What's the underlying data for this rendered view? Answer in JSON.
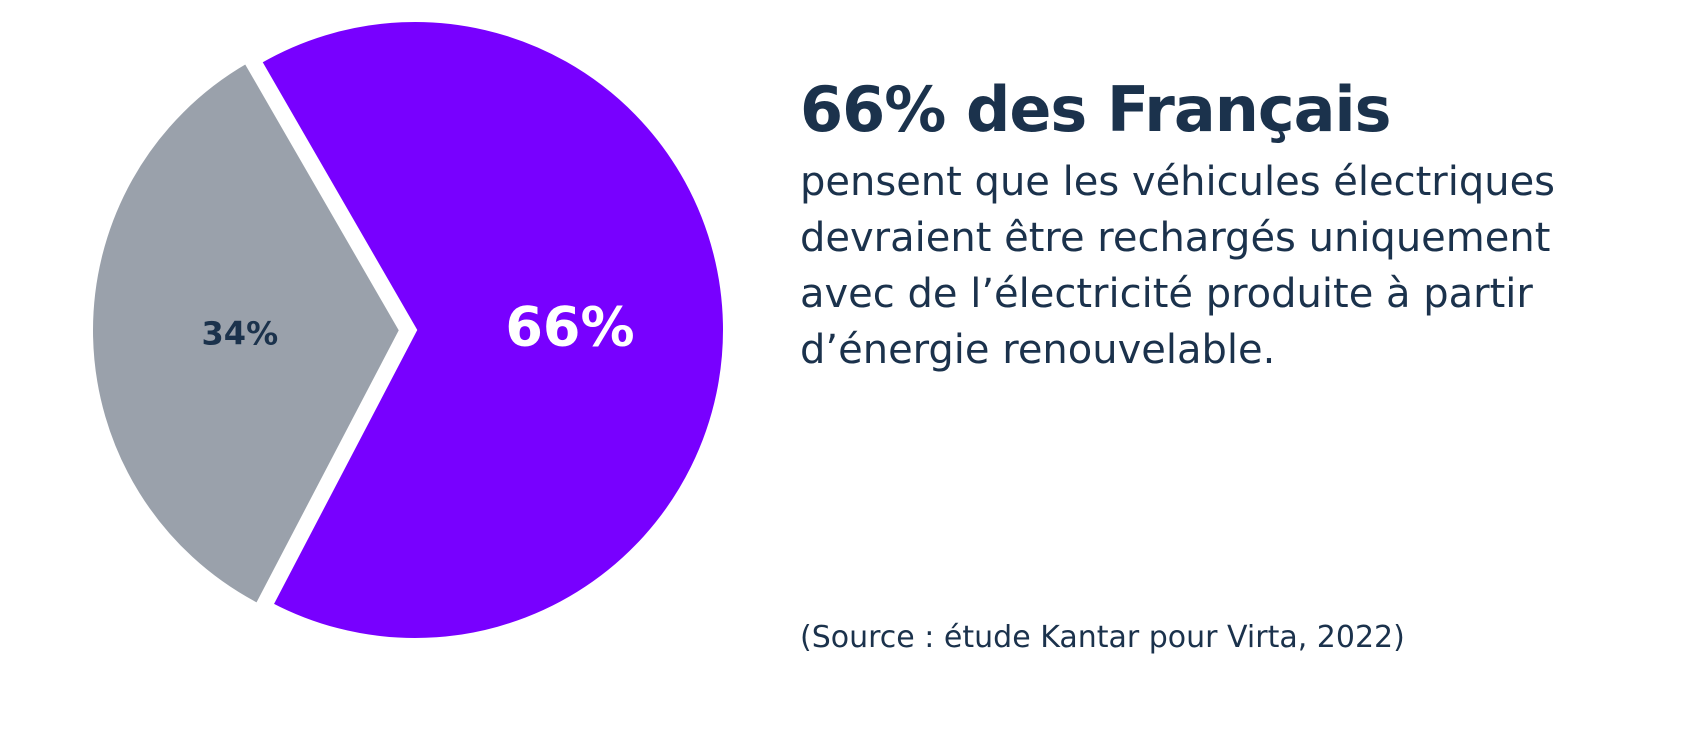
{
  "chart_data": {
    "type": "pie",
    "slices": [
      {
        "label": "66%",
        "value": 66,
        "color": "#7800ff",
        "label_color": "#ffffff"
      },
      {
        "label": "34%",
        "value": 34,
        "color": "#9aa1ab",
        "label_color": "#1b324c"
      }
    ]
  },
  "headline": "66% des Français",
  "body": "pensent que les véhicules électriques devraient être rechargés uniquement avec de l’électricité produite à partir d’énergie renouvelable.",
  "source": "(Source : étude Kantar pour Virta, 2022)",
  "colors": {
    "text": "#1b324c",
    "accent": "#7800ff",
    "secondary": "#9aa1ab"
  }
}
